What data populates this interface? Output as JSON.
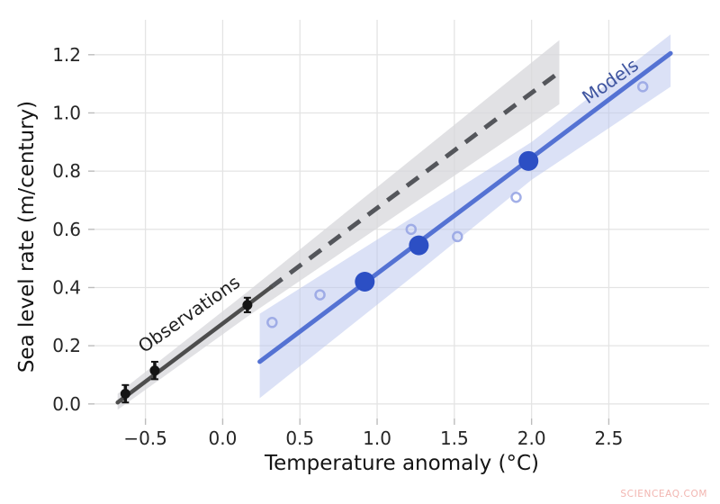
{
  "page": {
    "background": "#ffffff"
  },
  "watermark": {
    "text": "SCIENCEAQ.COM",
    "color": "#f2b5b0"
  },
  "chart_data": {
    "type": "scatter",
    "title": "",
    "xlabel": "Temperature anomaly (°C)",
    "ylabel": "Sea level rate (m/century)",
    "xlim": [
      -0.83,
      3.15
    ],
    "ylim": [
      -0.05,
      1.32
    ],
    "grid": true,
    "grid_color": "#e4e4e4",
    "tick_color": "#bcbcbc",
    "tick_label_color": "#262626",
    "x_ticks": [
      {
        "v": -0.5,
        "label": "−0.5"
      },
      {
        "v": 0.0,
        "label": "0.0"
      },
      {
        "v": 0.5,
        "label": "0.5"
      },
      {
        "v": 1.0,
        "label": "1.0"
      },
      {
        "v": 1.5,
        "label": "1.5"
      },
      {
        "v": 2.0,
        "label": "2.0"
      },
      {
        "v": 2.5,
        "label": "2.5"
      }
    ],
    "y_ticks": [
      {
        "v": 0.0,
        "label": "0.0"
      },
      {
        "v": 0.2,
        "label": "0.2"
      },
      {
        "v": 0.4,
        "label": "0.4"
      },
      {
        "v": 0.6,
        "label": "0.6"
      },
      {
        "v": 0.8,
        "label": "0.8"
      },
      {
        "v": 1.0,
        "label": "1.0"
      },
      {
        "v": 1.2,
        "label": "1.2"
      }
    ],
    "series": [
      {
        "name": "Observations",
        "line": {
          "color": "#4d4d4d",
          "width": 4.5,
          "style": "solid",
          "points": [
            [
              -0.68,
              0.005
            ],
            [
              0.31,
              0.4
            ]
          ]
        },
        "extrapolation": {
          "color": "#54565b",
          "width": 5,
          "style": "dashed",
          "dash": "16 11",
          "points": [
            [
              0.31,
              0.4
            ],
            [
              2.18,
              1.14
            ]
          ]
        },
        "band": {
          "color": "#d9d9dc",
          "opacity": 0.78,
          "upper": [
            [
              -0.68,
              0.035
            ],
            [
              0.16,
              0.385
            ],
            [
              2.18,
              1.25
            ]
          ],
          "lower": [
            [
              -0.68,
              -0.02
            ],
            [
              0.16,
              0.3
            ],
            [
              2.18,
              1.03
            ]
          ]
        },
        "marker": {
          "color": "#141414",
          "radius": 5.5,
          "errorbar_width": 3.5
        },
        "data_points": [
          {
            "x": -0.63,
            "y": 0.035,
            "err": 0.03
          },
          {
            "x": -0.44,
            "y": 0.115,
            "err": 0.03
          },
          {
            "x": 0.16,
            "y": 0.34,
            "err": 0.025
          }
        ]
      },
      {
        "name": "Models",
        "line": {
          "color": "#5472d3",
          "width": 5,
          "style": "solid",
          "points": [
            [
              0.24,
              0.145
            ],
            [
              2.9,
              1.205
            ]
          ]
        },
        "band": {
          "color": "#b7c3ee",
          "opacity": 0.5,
          "upper": [
            [
              0.24,
              0.31
            ],
            [
              1.27,
              0.655
            ],
            [
              2.0,
              0.9
            ],
            [
              2.9,
              1.27
            ]
          ],
          "lower": [
            [
              0.24,
              0.02
            ],
            [
              1.27,
              0.455
            ],
            [
              2.0,
              0.77
            ],
            [
              2.9,
              1.09
            ]
          ]
        },
        "highlight_marker": {
          "color": "#2c4fc4",
          "radius": 11
        },
        "highlight_points": [
          {
            "x": 0.92,
            "y": 0.42
          },
          {
            "x": 1.27,
            "y": 0.545
          },
          {
            "x": 1.98,
            "y": 0.835
          }
        ],
        "scatter_marker": {
          "stroke": "#98a6e4",
          "radius": 5,
          "stroke_width": 2.5,
          "opacity": 0.9
        },
        "scatter_points": [
          {
            "x": 0.32,
            "y": 0.28
          },
          {
            "x": 0.63,
            "y": 0.375
          },
          {
            "x": 1.22,
            "y": 0.6
          },
          {
            "x": 1.52,
            "y": 0.575
          },
          {
            "x": 1.9,
            "y": 0.71
          },
          {
            "x": 2.72,
            "y": 1.09
          }
        ]
      }
    ],
    "annotations": [
      {
        "text": "Observations",
        "x": -0.22,
        "y": 0.31,
        "angle": -35,
        "color": "#1f1f1f"
      },
      {
        "text": "Models",
        "x": 2.51,
        "y": 1.11,
        "angle": -35,
        "color": "#3f55a0"
      }
    ]
  }
}
